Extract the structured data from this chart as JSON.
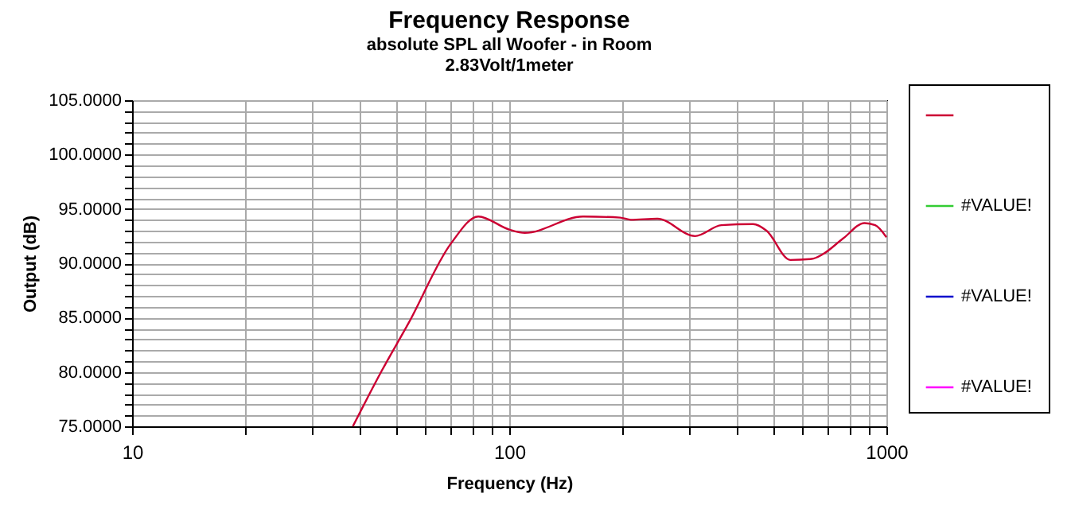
{
  "chart_data": {
    "type": "line",
    "title": "Frequency Response",
    "subtitle": "absolute SPL all Woofer - in Room\n2.83Volt/1meter",
    "xlabel": "Frequency (Hz)",
    "ylabel": "Output (dB)",
    "log": "x",
    "grid": true,
    "legend": "right",
    "line_style": "solid",
    "marker": "none",
    "xlim": [
      10,
      1000
    ],
    "ylim": [
      75,
      105
    ],
    "xticks": [
      10,
      {
        "value": 20,
        "label": null
      },
      {
        "value": 30,
        "label": null
      },
      {
        "value": 40,
        "label": null
      },
      {
        "value": 50,
        "label": null
      },
      {
        "value": 60,
        "label": null
      },
      {
        "value": 70,
        "label": null
      },
      {
        "value": 80,
        "label": null
      },
      {
        "value": 90,
        "label": null
      },
      100,
      {
        "value": 200,
        "label": null
      },
      {
        "value": 300,
        "label": null
      },
      {
        "value": 400,
        "label": null
      },
      {
        "value": 500,
        "label": null
      },
      {
        "value": 600,
        "label": null
      },
      {
        "value": 700,
        "label": null
      },
      {
        "value": 800,
        "label": null
      },
      {
        "value": 900,
        "label": null
      },
      1000
    ],
    "yticks": [
      {
        "value": 75,
        "label": "75.0000"
      },
      {
        "value": 76,
        "label": null
      },
      {
        "value": 77,
        "label": null
      },
      {
        "value": 78,
        "label": null
      },
      {
        "value": 79,
        "label": null
      },
      {
        "value": 80,
        "label": "80.0000"
      },
      {
        "value": 81,
        "label": null
      },
      {
        "value": 82,
        "label": null
      },
      {
        "value": 83,
        "label": null
      },
      {
        "value": 84,
        "label": null
      },
      {
        "value": 85,
        "label": "85.0000"
      },
      {
        "value": 86,
        "label": null
      },
      {
        "value": 87,
        "label": null
      },
      {
        "value": 88,
        "label": null
      },
      {
        "value": 89,
        "label": null
      },
      {
        "value": 90,
        "label": "90.0000"
      },
      {
        "value": 91,
        "label": null
      },
      {
        "value": 92,
        "label": null
      },
      {
        "value": 93,
        "label": null
      },
      {
        "value": 94,
        "label": null
      },
      {
        "value": 95,
        "label": "95.0000"
      },
      {
        "value": 96,
        "label": null
      },
      {
        "value": 97,
        "label": null
      },
      {
        "value": 98,
        "label": null
      },
      {
        "value": 99,
        "label": null
      },
      {
        "value": 100,
        "label": "100.0000"
      },
      {
        "value": 101,
        "label": null
      },
      {
        "value": 102,
        "label": null
      },
      {
        "value": 103,
        "label": null
      },
      {
        "value": 104,
        "label": null
      },
      {
        "value": 105,
        "label": "105.0000"
      }
    ],
    "x": [
      38.5,
      45.9,
      54.1,
      70,
      82.8,
      100,
      110,
      157,
      197,
      210,
      247,
      311,
      365,
      443,
      481,
      556,
      634,
      676,
      769,
      875,
      934,
      1000
    ],
    "series": [
      {
        "color": "#cc0033",
        "values": [
          75,
          80.1,
          84.5,
          91.8,
          94.3,
          93.1,
          92.8,
          94.3,
          94.2,
          94.0,
          94.1,
          92.5,
          93.5,
          93.6,
          93.0,
          90.3,
          90.4,
          90.8,
          92.3,
          93.7,
          93.5,
          92.4
        ]
      },
      {
        "name": "#VALUE!",
        "color": "#33cc33",
        "values": [
          null,
          null,
          null,
          null,
          null,
          null,
          null,
          null,
          null,
          null,
          null,
          null,
          null,
          null,
          null,
          null,
          null,
          null,
          null,
          null,
          null,
          null
        ]
      },
      {
        "name": "#VALUE!",
        "color": "#0000cc",
        "values": [
          null,
          null,
          null,
          null,
          null,
          null,
          null,
          null,
          null,
          null,
          null,
          null,
          null,
          null,
          null,
          null,
          null,
          null,
          null,
          null,
          null,
          null
        ]
      },
      {
        "name": "#VALUE!",
        "color": "#ff00ff",
        "values": [
          null,
          null,
          null,
          null,
          null,
          null,
          null,
          null,
          null,
          null,
          null,
          null,
          null,
          null,
          null,
          null,
          null,
          null,
          null,
          null,
          null,
          null
        ]
      }
    ]
  }
}
